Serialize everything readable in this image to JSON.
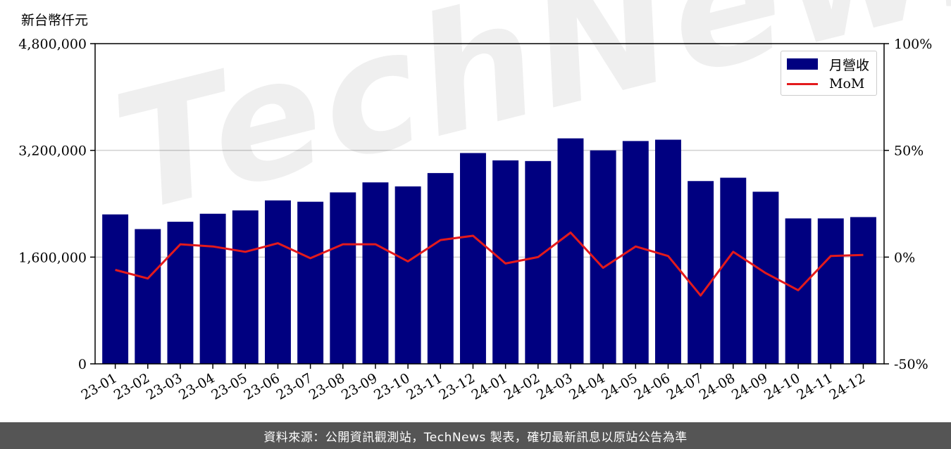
{
  "header": {
    "unit_label": "新台幣仟元"
  },
  "watermark": {
    "text": "TechNews"
  },
  "footer": {
    "text": "資料來源：公開資訊觀測站，TechNews 製表，確切最新訊息以原站公告為準"
  },
  "colors": {
    "bar": "#000080",
    "line": "#e31a1c",
    "grid": "#d0d0d0",
    "footer_bg": "#555555"
  },
  "chart_data": {
    "type": "bar",
    "categories": [
      "23-01",
      "23-02",
      "23-03",
      "23-04",
      "23-05",
      "23-06",
      "23-07",
      "23-08",
      "23-09",
      "23-10",
      "23-11",
      "23-12",
      "24-01",
      "24-02",
      "24-03",
      "24-04",
      "24-05",
      "24-06",
      "24-07",
      "24-08",
      "24-09",
      "24-10",
      "24-11",
      "24-12"
    ],
    "series": [
      {
        "name": "月營收",
        "type": "bar",
        "axis": "left",
        "values": [
          2240000,
          2020000,
          2130000,
          2250000,
          2300000,
          2450000,
          2430000,
          2570000,
          2720000,
          2660000,
          2860000,
          3160000,
          3050000,
          3040000,
          3380000,
          3200000,
          3340000,
          3360000,
          2740000,
          2790000,
          2580000,
          2180000,
          2180000,
          2200000
        ]
      },
      {
        "name": "MoM",
        "type": "line",
        "axis": "right",
        "values": [
          -6,
          -10,
          6,
          5,
          2.5,
          6.5,
          -0.5,
          6,
          6,
          -2,
          8,
          10,
          -3,
          0,
          11.5,
          -5,
          5,
          0.5,
          -18,
          2.5,
          -7.5,
          -15.5,
          0.5,
          1
        ]
      }
    ],
    "y_left": {
      "ylim": [
        0,
        4800000
      ],
      "ticks": [
        "0",
        "1,600,000",
        "3,200,000",
        "4,800,000"
      ],
      "tick_values": [
        0,
        1600000,
        3200000,
        4800000
      ]
    },
    "y_right": {
      "ylim": [
        -50,
        100
      ],
      "ticks": [
        "-50%",
        "0%",
        "50%",
        "100%"
      ],
      "tick_values": [
        -50,
        0,
        50,
        100
      ]
    },
    "grid": "horizontal",
    "legend": {
      "placement": "top-right",
      "entries": [
        "月營收",
        "MoM"
      ]
    }
  }
}
